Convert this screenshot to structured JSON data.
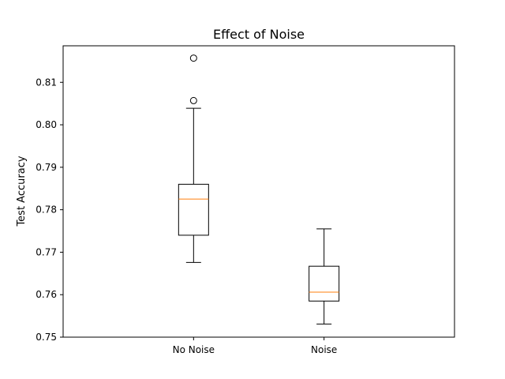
{
  "chart_data": {
    "type": "box",
    "title": "Effect of Noise",
    "xlabel": "",
    "ylabel": "Test Accuracy",
    "ylim": [
      0.75,
      0.8186
    ],
    "yticks": [
      0.75,
      0.76,
      0.77,
      0.78,
      0.79,
      0.8,
      0.81
    ],
    "ytick_labels": [
      "0.75",
      "0.76",
      "0.77",
      "0.78",
      "0.79",
      "0.80",
      "0.81"
    ],
    "categories": [
      "No Noise",
      "Noise"
    ],
    "grid": false,
    "boxes": [
      {
        "label": "No Noise",
        "whisker_low": 0.7676,
        "q1": 0.774,
        "median": 0.7825,
        "q3": 0.786,
        "whisker_high": 0.8039,
        "outliers": [
          0.8057,
          0.8157
        ]
      },
      {
        "label": "Noise",
        "whisker_low": 0.7531,
        "q1": 0.7585,
        "median": 0.7606,
        "q3": 0.7667,
        "whisker_high": 0.7755,
        "outliers": []
      }
    ],
    "colors": {
      "box": "#000000",
      "median": "#ff7f0e",
      "outlier": "#000000"
    }
  }
}
